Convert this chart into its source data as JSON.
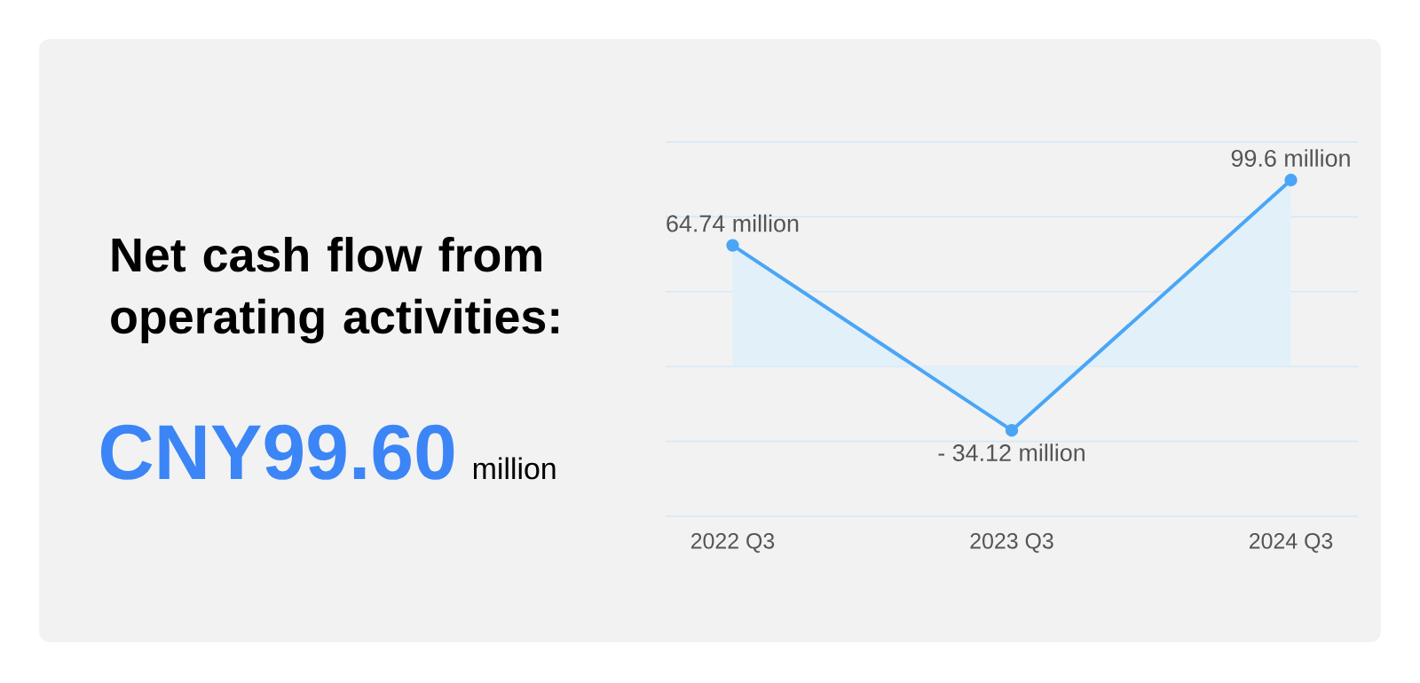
{
  "chart_data": {
    "type": "area",
    "title": "Net cash flow from operating activities:",
    "annotations": [
      "CNY99.60",
      "million"
    ],
    "categories": [
      "2022 Q3",
      "2023 Q3",
      "2024 Q3"
    ],
    "values": [
      64.74,
      -34.12,
      99.6
    ],
    "value_labels": [
      "64.74 million",
      "- 34.12 million",
      "99.6 million"
    ],
    "color": "#4aa6f5",
    "ylim": [
      -80,
      120
    ],
    "yticks": [
      {
        "value": -80,
        "label": null
      },
      {
        "value": -40,
        "label": null
      },
      {
        "value": 0,
        "label": null
      },
      {
        "value": 40,
        "label": null
      },
      {
        "value": 80,
        "label": null
      },
      {
        "value": 120,
        "label": null
      }
    ],
    "tick_labels": "x",
    "grid": "y",
    "marker": "circle"
  }
}
